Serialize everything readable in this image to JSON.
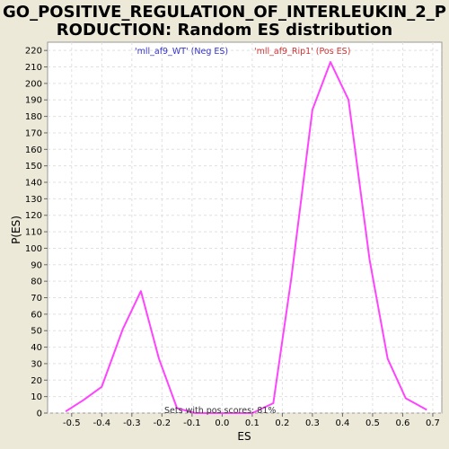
{
  "chart_data": {
    "type": "line",
    "title_lines": [
      "GO_POSITIVE_REGULATION_OF_INTERLEUKIN_2_P",
      "RODUCTION: Random ES distribution"
    ],
    "xlabel": "ES",
    "ylabel": "P(ES)",
    "xlim": [
      -0.58,
      0.73
    ],
    "ylim": [
      0,
      225
    ],
    "x_ticks": [
      -0.5,
      -0.4,
      -0.3,
      -0.2,
      -0.1,
      0.0,
      0.1,
      0.2,
      0.3,
      0.4,
      0.5,
      0.6,
      0.7
    ],
    "x_tick_labels": [
      "-0.5",
      "-0.4",
      "-0.3",
      "-0.2",
      "-0.1",
      "0.0",
      "0.1",
      "0.2",
      "0.3",
      "0.4",
      "0.5",
      "0.6",
      "0.7"
    ],
    "y_ticks": [
      0,
      10,
      20,
      30,
      40,
      50,
      60,
      70,
      80,
      90,
      100,
      110,
      120,
      130,
      140,
      150,
      160,
      170,
      180,
      190,
      200,
      210,
      220
    ],
    "grid": true,
    "line_color": "#ff44ff",
    "series": [
      {
        "x": [
          -0.52,
          -0.46,
          -0.4,
          -0.33,
          -0.27,
          -0.21,
          -0.15,
          -0.09,
          -0.03,
          0.04,
          0.1,
          0.17,
          0.23,
          0.3,
          0.36,
          0.42,
          0.49,
          0.55,
          0.61,
          0.68
        ],
        "y": [
          1,
          8,
          16,
          51,
          74,
          33,
          3,
          0,
          0,
          0,
          0,
          6,
          82,
          184,
          213,
          190,
          93,
          33,
          9,
          2
        ]
      }
    ],
    "legend": [
      {
        "label": "'mll_af9_WT' (Neg ES)",
        "color": "#3333cc"
      },
      {
        "label": "'mll_af9_Rip1' (Pos ES)",
        "color": "#cc3333"
      }
    ],
    "annotation": "Sets with pos scores: 81%"
  }
}
